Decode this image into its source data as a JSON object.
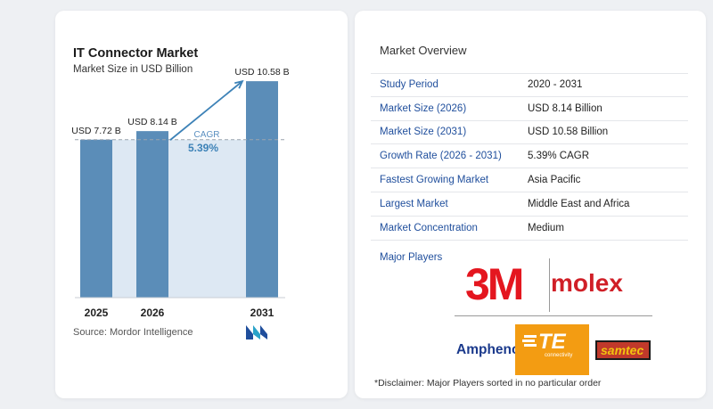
{
  "chart_data": {
    "type": "bar",
    "title": "IT Connector Market",
    "subtitle": "Market Size in USD Billion",
    "categories": [
      "2025",
      "2026",
      "2031"
    ],
    "values": [
      7.72,
      8.14,
      10.58
    ],
    "value_labels": [
      "USD 7.72 B",
      "USD 8.14 B",
      "USD 10.58 B"
    ],
    "cagr_label": "CAGR",
    "cagr_value": "5.39%",
    "bar_color": "#5b8db8",
    "band_color": "#dde8f3",
    "accent_color": "#3d82b7",
    "ylim": [
      0,
      11.5
    ]
  },
  "source": "Source:  Mordor Intelligence",
  "overview": {
    "title": "Market Overview",
    "rows": [
      {
        "label": "Study Period",
        "value": "2020 - 2031"
      },
      {
        "label": "Market Size (2026)",
        "value": "USD 8.14 Billion"
      },
      {
        "label": "Market Size (2031)",
        "value": "USD 10.58 Billion"
      },
      {
        "label": "Growth Rate (2026 - 2031)",
        "value": "5.39% CAGR"
      },
      {
        "label": "Fastest Growing Market",
        "value": "Asia Pacific"
      },
      {
        "label": "Largest Market",
        "value": "Middle East and Africa"
      },
      {
        "label": "Market Concentration",
        "value": "Medium"
      }
    ],
    "players_label": "Major Players",
    "players": {
      "p1": "3M",
      "p2": "molex",
      "p3": "Amphenol",
      "p4": "TE",
      "p4_sub": "connectivity",
      "p5": "samtec"
    },
    "disclaimer": "*Disclaimer: Major Players sorted in no particular order"
  }
}
